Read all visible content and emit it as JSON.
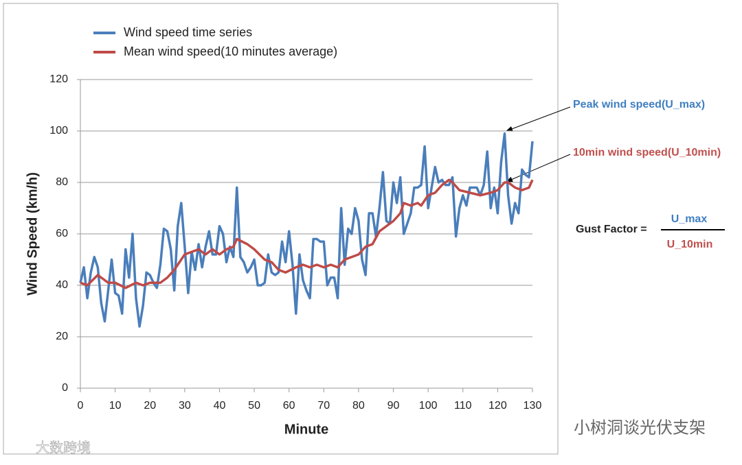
{
  "chart_data": {
    "type": "line",
    "xlabel": "Minute",
    "ylabel": "Wind Speed (km/h)",
    "xlim": [
      0,
      130
    ],
    "xticks": [
      0,
      10,
      20,
      30,
      40,
      50,
      60,
      70,
      80,
      90,
      100,
      110,
      120,
      130
    ],
    "ylim": [
      0,
      120
    ],
    "yticks": [
      0,
      20,
      40,
      60,
      80,
      100,
      120
    ],
    "grid": true,
    "legend": "top-left",
    "series": [
      {
        "name": "Wind speed time series",
        "color": "#4a7ebb",
        "x": [
          0,
          1,
          2,
          3,
          4,
          5,
          6,
          7,
          8,
          9,
          10,
          11,
          12,
          13,
          14,
          15,
          16,
          17,
          18,
          19,
          20,
          21,
          22,
          23,
          24,
          25,
          26,
          27,
          28,
          29,
          30,
          31,
          32,
          33,
          34,
          35,
          36,
          37,
          38,
          39,
          40,
          41,
          42,
          43,
          44,
          45,
          46,
          47,
          48,
          49,
          50,
          51,
          52,
          53,
          54,
          55,
          56,
          57,
          58,
          59,
          60,
          61,
          62,
          63,
          64,
          65,
          66,
          67,
          68,
          69,
          70,
          71,
          72,
          73,
          74,
          75,
          76,
          77,
          78,
          79,
          80,
          81,
          82,
          83,
          84,
          85,
          86,
          87,
          88,
          89,
          90,
          91,
          92,
          93,
          94,
          95,
          96,
          97,
          98,
          99,
          100,
          101,
          102,
          103,
          104,
          105,
          106,
          107,
          108,
          109,
          110,
          111,
          112,
          113,
          114,
          115,
          116,
          117,
          118,
          119,
          120,
          121,
          122,
          123,
          124,
          125,
          126,
          127,
          128,
          129,
          130
        ],
        "values": [
          41,
          47,
          35,
          45,
          51,
          47,
          33,
          26,
          38,
          50,
          37,
          36,
          29,
          54,
          43,
          60,
          35,
          24,
          32,
          45,
          44,
          41,
          39,
          48,
          62,
          61,
          54,
          38,
          63,
          72,
          55,
          37,
          53,
          46,
          56,
          47,
          55,
          61,
          52,
          52,
          63,
          60,
          49,
          55,
          51,
          78,
          51,
          49,
          45,
          47,
          50,
          40,
          40,
          41,
          52,
          45,
          44,
          45,
          57,
          49,
          61,
          48,
          29,
          52,
          42,
          38,
          35,
          58,
          58,
          57,
          57,
          40,
          43,
          43,
          35,
          70,
          48,
          62,
          60,
          70,
          65,
          50,
          44,
          68,
          68,
          59,
          70,
          84,
          65,
          64,
          80,
          72,
          82,
          60,
          64,
          68,
          78,
          78,
          79,
          94,
          70,
          78,
          86,
          80,
          81,
          79,
          79,
          82,
          59,
          70,
          75,
          71,
          78,
          78,
          78,
          75,
          79,
          92,
          70,
          78,
          68,
          88,
          99,
          75,
          64,
          72,
          68,
          85,
          83,
          82,
          96
        ]
      },
      {
        "name": "Mean wind speed(10 minutes average)",
        "color": "#be4b48",
        "x": [
          0,
          2,
          5,
          8,
          10,
          13,
          16,
          18,
          20,
          23,
          25,
          27,
          30,
          32,
          34,
          36,
          38,
          40,
          42,
          44,
          45,
          48,
          50,
          53,
          55,
          57,
          59,
          62,
          64,
          66,
          68,
          70,
          72,
          74,
          76,
          78,
          80,
          82,
          84,
          86,
          88,
          90,
          92,
          93,
          95,
          97,
          98,
          100,
          102,
          104,
          106,
          107,
          109,
          112,
          115,
          118,
          120,
          122,
          123,
          125,
          127,
          129,
          130
        ],
        "values": [
          41,
          40,
          44,
          41,
          41,
          39,
          41,
          40,
          41,
          41,
          43,
          46,
          52,
          53,
          54,
          52,
          54,
          52,
          54,
          55,
          58,
          56,
          54,
          50,
          49,
          46,
          45,
          47,
          48,
          47,
          48,
          47,
          48,
          47,
          50,
          51,
          52,
          55,
          56,
          61,
          63,
          65,
          68,
          72,
          71,
          72,
          71,
          75,
          76,
          79,
          81,
          80,
          77,
          76,
          75,
          76,
          77,
          80,
          80,
          78,
          77,
          78,
          81
        ]
      }
    ],
    "annotations": [
      "Peak wind speed(U_max)",
      "10min wind speed(U_10min)"
    ],
    "formula": {
      "label": "Gust Factor =",
      "numerator": "U_max",
      "denominator": "U_10min"
    },
    "watermarks": [
      "小树洞谈光伏支架",
      "大数跨境"
    ]
  }
}
